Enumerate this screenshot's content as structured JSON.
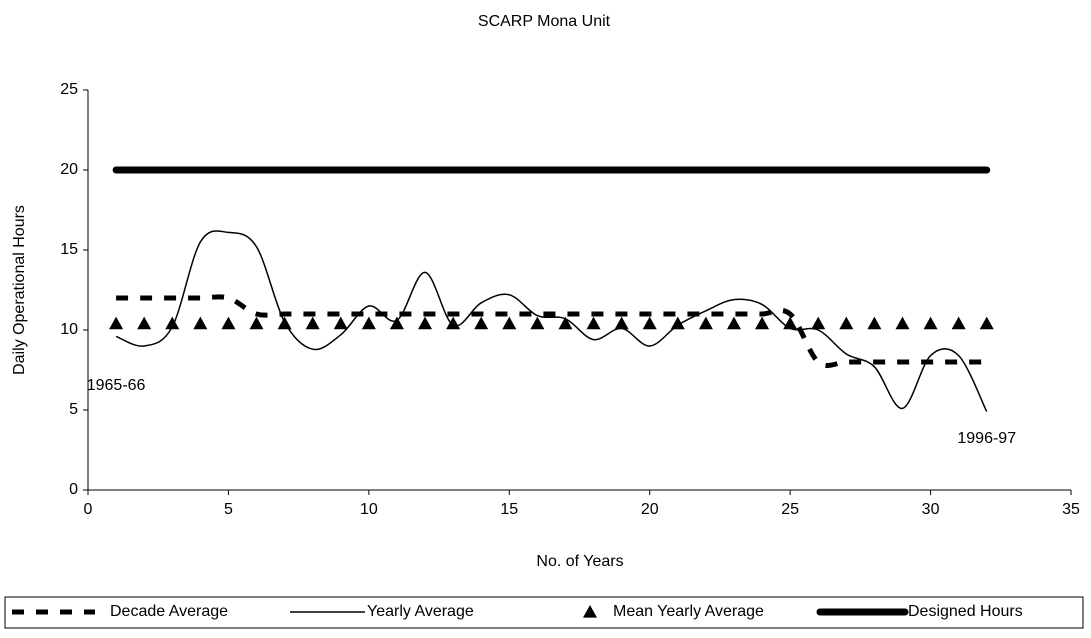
{
  "chart_data": {
    "type": "line",
    "title": "SCARP Mona Unit",
    "xlabel": "No. of Years",
    "ylabel": "Daily Operational Hours",
    "xlim": [
      0,
      35
    ],
    "xticks": [
      0,
      5,
      10,
      15,
      20,
      25,
      30,
      35
    ],
    "ylim": [
      0,
      25
    ],
    "yticks": [
      0,
      5,
      10,
      15,
      20,
      25
    ],
    "x": [
      1,
      2,
      3,
      4,
      5,
      6,
      7,
      8,
      9,
      10,
      11,
      12,
      13,
      14,
      15,
      16,
      17,
      18,
      19,
      20,
      21,
      22,
      23,
      24,
      25,
      26,
      27,
      28,
      29,
      30,
      31,
      32
    ],
    "series": [
      {
        "name": "Decade Average",
        "color": "#000000",
        "style": "dashed",
        "smooth": true,
        "values": [
          12,
          12,
          12,
          12,
          12,
          11,
          11,
          11,
          11,
          11,
          11,
          11,
          11,
          11,
          11,
          11,
          11,
          11,
          11,
          11,
          11,
          11,
          11,
          11,
          11,
          8,
          8,
          8,
          8,
          8,
          8,
          8
        ]
      },
      {
        "name": "Yearly Average",
        "color": "#000000",
        "style": "solid",
        "smooth": true,
        "values": [
          9.6,
          9.0,
          10.2,
          15.5,
          16.1,
          15.2,
          10.5,
          8.8,
          9.7,
          11.5,
          10.6,
          13.6,
          10.3,
          11.7,
          12.2,
          10.9,
          10.7,
          9.4,
          10.1,
          9.0,
          10.3,
          11.2,
          11.9,
          11.6,
          10.1,
          10.0,
          8.5,
          7.7,
          5.1,
          8.4,
          8.4,
          4.9
        ]
      },
      {
        "name": "Mean Yearly Average",
        "color": "#000000",
        "style": "markers",
        "marker": "triangle",
        "values": [
          10.4,
          10.4,
          10.4,
          10.4,
          10.4,
          10.4,
          10.4,
          10.4,
          10.4,
          10.4,
          10.4,
          10.4,
          10.4,
          10.4,
          10.4,
          10.4,
          10.4,
          10.4,
          10.4,
          10.4,
          10.4,
          10.4,
          10.4,
          10.4,
          10.4,
          10.4,
          10.4,
          10.4,
          10.4,
          10.4,
          10.4,
          10.4
        ]
      },
      {
        "name": "Designed Hours",
        "color": "#000000",
        "style": "thick",
        "smooth": false,
        "values": [
          20,
          20,
          20,
          20,
          20,
          20,
          20,
          20,
          20,
          20,
          20,
          20,
          20,
          20,
          20,
          20,
          20,
          20,
          20,
          20,
          20,
          20,
          20,
          20,
          20,
          20,
          20,
          20,
          20,
          20,
          20,
          20
        ]
      }
    ],
    "annotations": [
      {
        "text": "1965-66",
        "x": 1,
        "y": 6.5
      },
      {
        "text": "1996-97",
        "x": 32,
        "y": 3.2
      }
    ],
    "legend": "bottom"
  }
}
